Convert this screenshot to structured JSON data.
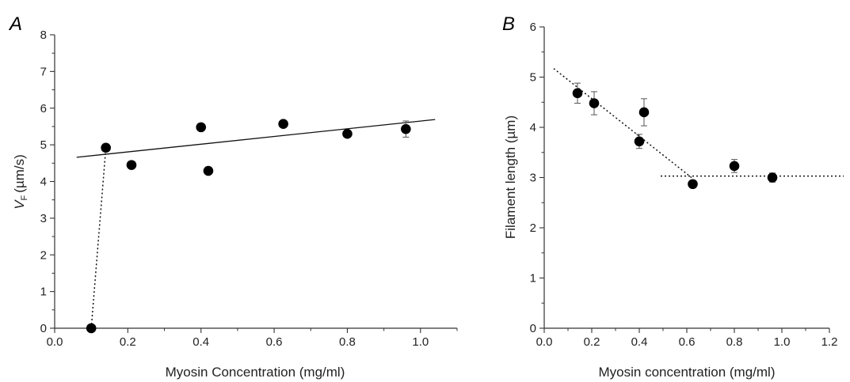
{
  "chart_data": [
    {
      "panel_label": "A",
      "type": "scatter",
      "title": "",
      "xlabel": "Myosin Concentration (mg/ml)",
      "ylabel_symbol": "V",
      "ylabel_subscript": "F",
      "ylabel_units": "(µm/s)",
      "xlim": [
        0.0,
        1.1
      ],
      "ylim": [
        0,
        8
      ],
      "xticks": [
        "0.0",
        "0.2",
        "0.4",
        "0.6",
        "0.8",
        "1.0"
      ],
      "yticks": [
        "0",
        "1",
        "2",
        "3",
        "4",
        "5",
        "6",
        "7",
        "8"
      ],
      "grid": false,
      "legend": "none",
      "marker_color": "#000000",
      "points": [
        {
          "x": 0.1,
          "y": 0.0
        },
        {
          "x": 0.14,
          "y": 4.92,
          "err": 0.1
        },
        {
          "x": 0.21,
          "y": 4.45
        },
        {
          "x": 0.4,
          "y": 5.48
        },
        {
          "x": 0.42,
          "y": 4.29
        },
        {
          "x": 0.625,
          "y": 5.57
        },
        {
          "x": 0.8,
          "y": 5.3
        },
        {
          "x": 0.96,
          "y": 5.43,
          "err": 0.22
        }
      ],
      "fit_lines": [
        {
          "style": "solid",
          "x": [
            0.06,
            1.04
          ],
          "y": [
            4.66,
            5.69
          ]
        },
        {
          "style": "dotted",
          "x": [
            0.1,
            0.14
          ],
          "y": [
            0.0,
            4.92
          ]
        }
      ]
    },
    {
      "panel_label": "B",
      "type": "scatter",
      "title": "",
      "xlabel": "Myosin concentration (mg/ml)",
      "ylabel": "Filament length (µm)",
      "xlim": [
        0.0,
        1.2
      ],
      "ylim": [
        0,
        6
      ],
      "xticks": [
        "0.0",
        "0.2",
        "0.4",
        "0.6",
        "0.8",
        "1.0",
        "1.2"
      ],
      "yticks": [
        "0",
        "1",
        "2",
        "3",
        "4",
        "5",
        "6"
      ],
      "grid": false,
      "legend": "none",
      "marker_color": "#000000",
      "points": [
        {
          "x": 0.14,
          "y": 4.68,
          "err": 0.2
        },
        {
          "x": 0.21,
          "y": 4.48,
          "err": 0.23
        },
        {
          "x": 0.4,
          "y": 3.72,
          "err": 0.14
        },
        {
          "x": 0.42,
          "y": 4.3,
          "err": 0.27
        },
        {
          "x": 0.625,
          "y": 2.87,
          "err": 0.07
        },
        {
          "x": 0.8,
          "y": 3.23,
          "err": 0.13
        },
        {
          "x": 0.96,
          "y": 3.0,
          "err": 0.09
        }
      ],
      "fit_lines": [
        {
          "style": "dotted",
          "x": [
            0.04,
            0.625
          ],
          "y": [
            5.17,
            2.98
          ]
        },
        {
          "style": "dotted",
          "x": [
            0.49,
            1.26
          ],
          "y": [
            3.03,
            3.03
          ]
        }
      ]
    }
  ]
}
